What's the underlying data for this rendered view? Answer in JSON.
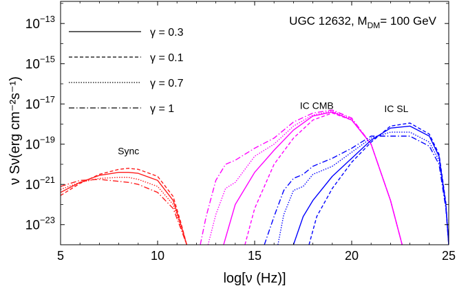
{
  "chart_data": {
    "type": "line",
    "title": "UGC 12632, M",
    "title_sub": "DM",
    "title_suffix": "= 100 GeV",
    "xlabel": "log[ν (Hz)]",
    "ylabel": "ν Sν(erg cm⁻²s⁻¹)",
    "xlim": [
      5,
      25
    ],
    "ylim": [
      -24.0,
      -11.9
    ],
    "y_log_scale": true,
    "x_ticks": [
      "5",
      "10",
      "15",
      "20",
      "25"
    ],
    "x_tick_values": [
      5,
      10,
      15,
      20,
      25
    ],
    "y_ticks": [
      {
        "exp": -13,
        "base": "10",
        "sup": "−13"
      },
      {
        "exp": -15,
        "base": "10",
        "sup": "−15"
      },
      {
        "exp": -17,
        "base": "10",
        "sup": "−17"
      },
      {
        "exp": -19,
        "base": "10",
        "sup": "−19"
      },
      {
        "exp": -21,
        "base": "10",
        "sup": "−21"
      },
      {
        "exp": -23,
        "base": "10",
        "sup": "−23"
      }
    ],
    "legend": {
      "placement": "top-left",
      "entries": [
        {
          "label": "γ = 0.3",
          "dash": "solid"
        },
        {
          "label": "γ = 0.1",
          "dash": "dashed"
        },
        {
          "label": "γ = 0.7",
          "dash": "dotted"
        },
        {
          "label": "γ = 1",
          "dash": "dashdot"
        }
      ]
    },
    "annotations": [
      {
        "text": "Sync",
        "x": 8.5,
        "y": -19.5
      },
      {
        "text": "IC CMB",
        "x": 18.2,
        "y": -17.25
      },
      {
        "text": "IC SL",
        "x": 22.3,
        "y": -17.4
      }
    ],
    "colors": {
      "sync": "#ff1a1a",
      "ic_cmb": "#ff00ff",
      "ic_sl": "#0000ff",
      "axis": "#000000"
    },
    "series": [
      {
        "component": "sync",
        "gamma": "0.3",
        "dash": "solid",
        "x": [
          5,
          6,
          7,
          8,
          8.5,
          9,
          10,
          10.8,
          11.2,
          11.5
        ],
        "y": [
          -21.4,
          -20.9,
          -20.55,
          -20.4,
          -20.4,
          -20.45,
          -20.8,
          -21.8,
          -23.0,
          -24.0
        ]
      },
      {
        "component": "sync",
        "gamma": "0.1",
        "dash": "dashed",
        "x": [
          5,
          6,
          7,
          8,
          8.5,
          9,
          10,
          10.8,
          11.2,
          11.5
        ],
        "y": [
          -21.55,
          -20.95,
          -20.5,
          -20.25,
          -20.2,
          -20.25,
          -20.6,
          -21.6,
          -22.9,
          -24.0
        ]
      },
      {
        "component": "sync",
        "gamma": "0.7",
        "dash": "dotted",
        "x": [
          5,
          6,
          7,
          8,
          8.5,
          9,
          10,
          10.8,
          11.2,
          11.5
        ],
        "y": [
          -21.25,
          -20.9,
          -20.7,
          -20.65,
          -20.65,
          -20.75,
          -21.1,
          -22.0,
          -23.1,
          -24.0
        ]
      },
      {
        "component": "sync",
        "gamma": "1",
        "dash": "dashdot",
        "x": [
          5,
          6,
          7,
          8,
          8.5,
          9,
          10,
          10.8,
          11.2,
          11.5
        ],
        "y": [
          -21.1,
          -20.8,
          -20.75,
          -20.85,
          -20.9,
          -21.0,
          -21.4,
          -22.2,
          -23.2,
          -24.0
        ]
      },
      {
        "component": "ic_cmb",
        "gamma": "0.3",
        "dash": "solid",
        "x": [
          13.4,
          14,
          15,
          16,
          17,
          18,
          19,
          20,
          21,
          22,
          22.6
        ],
        "y": [
          -24.0,
          -22.0,
          -20.4,
          -19.3,
          -18.3,
          -17.6,
          -17.4,
          -17.8,
          -19.0,
          -21.8,
          -24.0
        ]
      },
      {
        "component": "ic_cmb",
        "gamma": "0.1",
        "dash": "dashed",
        "x": [
          14.5,
          15,
          16,
          17,
          18,
          19,
          20,
          21,
          22,
          22.6
        ],
        "y": [
          -24.0,
          -22.2,
          -20.0,
          -18.7,
          -17.8,
          -17.45,
          -17.8,
          -19.0,
          -21.8,
          -24.0
        ]
      },
      {
        "component": "ic_cmb",
        "gamma": "0.7",
        "dash": "dotted",
        "x": [
          12.6,
          13,
          13.5,
          14,
          15,
          16,
          17,
          18,
          19,
          20,
          21,
          22,
          22.6
        ],
        "y": [
          -24.0,
          -22.5,
          -21.2,
          -20.9,
          -19.6,
          -19.0,
          -18.1,
          -17.55,
          -17.35,
          -17.75,
          -19.0,
          -21.8,
          -24.0
        ]
      },
      {
        "component": "ic_cmb",
        "gamma": "1",
        "dash": "dashdot",
        "x": [
          12.2,
          12.5,
          13,
          13.5,
          14,
          15,
          16,
          17,
          18,
          19,
          20,
          21,
          22,
          22.6
        ],
        "y": [
          -24.0,
          -22.6,
          -20.8,
          -20.0,
          -19.8,
          -19.2,
          -18.7,
          -17.9,
          -17.45,
          -17.3,
          -17.7,
          -19.0,
          -21.8,
          -24.0
        ]
      },
      {
        "component": "ic_sl",
        "gamma": "0.3",
        "dash": "solid",
        "x": [
          17.0,
          17.5,
          18,
          19,
          20,
          21,
          22,
          23,
          24,
          24.5,
          24.85,
          25.0
        ],
        "y": [
          -24.0,
          -22.6,
          -21.8,
          -20.6,
          -19.7,
          -18.8,
          -18.2,
          -18.1,
          -18.6,
          -19.6,
          -22.0,
          -24.0
        ]
      },
      {
        "component": "ic_sl",
        "gamma": "0.1",
        "dash": "dashed",
        "x": [
          17.8,
          18.2,
          19,
          20,
          21,
          22,
          23,
          24,
          24.5,
          24.85,
          25.0
        ],
        "y": [
          -24.0,
          -22.6,
          -21.2,
          -19.9,
          -18.9,
          -18.1,
          -17.95,
          -18.5,
          -19.5,
          -21.9,
          -24.0
        ]
      },
      {
        "component": "ic_sl",
        "gamma": "0.7",
        "dash": "dotted",
        "x": [
          16.2,
          16.5,
          17,
          17.5,
          18,
          19,
          20,
          21,
          22,
          23,
          24,
          24.5,
          24.85,
          25.0
        ],
        "y": [
          -24.0,
          -22.5,
          -21.3,
          -21.1,
          -20.5,
          -20.1,
          -19.4,
          -18.7,
          -18.4,
          -18.4,
          -18.9,
          -19.8,
          -22.1,
          -24.0
        ]
      },
      {
        "component": "ic_sl",
        "gamma": "1",
        "dash": "dashdot",
        "x": [
          15.5,
          16,
          16.5,
          17,
          17.5,
          18,
          19,
          20,
          21,
          22,
          23,
          24,
          24.5,
          24.85,
          25.0
        ],
        "y": [
          -24.0,
          -22.6,
          -21.3,
          -20.7,
          -20.5,
          -20.1,
          -19.7,
          -19.2,
          -18.6,
          -18.6,
          -18.6,
          -19.1,
          -20.0,
          -22.2,
          -24.0
        ]
      }
    ]
  }
}
